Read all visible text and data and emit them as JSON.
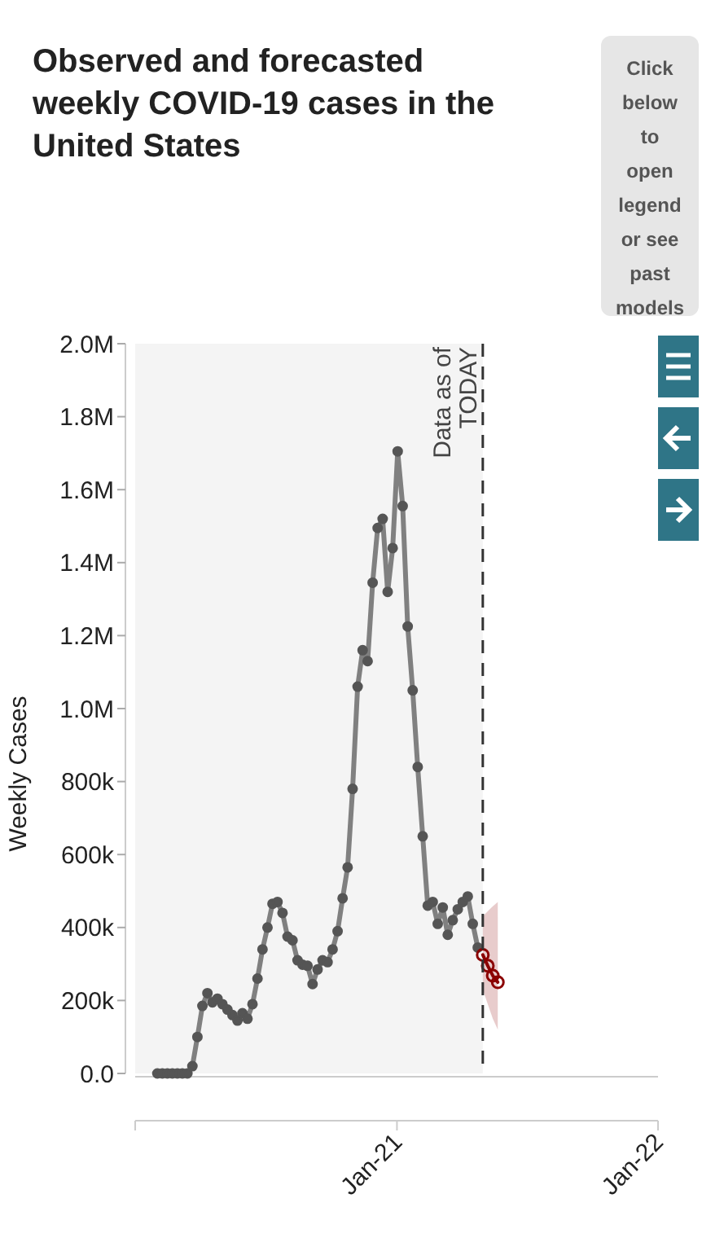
{
  "chart_data": {
    "type": "line",
    "title": "Observed and forecasted weekly COVID-19 cases in the United States",
    "ylabel": "Weekly Cases",
    "annotations": [
      "Click below to open legend or see past models"
    ],
    "xlim": [
      "2020-01-01",
      "2022-01-01"
    ],
    "xticks": [
      {
        "value": "2020-01-01",
        "label": null
      },
      {
        "value": "2021-01-01",
        "label": "Jan-21"
      },
      {
        "value": "2022-01-01",
        "label": "Jan-22"
      }
    ],
    "ylim": [
      0,
      2000000
    ],
    "yticks": [
      {
        "value": 0,
        "label": "0.0"
      },
      {
        "value": 200000,
        "label": "200k"
      },
      {
        "value": 400000,
        "label": "400k"
      },
      {
        "value": 600000,
        "label": "600k"
      },
      {
        "value": 800000,
        "label": "800k"
      },
      {
        "value": 1000000,
        "label": "1.0M"
      },
      {
        "value": 1200000,
        "label": "1.2M"
      },
      {
        "value": 1400000,
        "label": "1.4M"
      },
      {
        "value": 1600000,
        "label": "1.6M"
      },
      {
        "value": 1800000,
        "label": "1.8M"
      },
      {
        "value": 2000000,
        "label": "2.0M"
      }
    ],
    "ref_lines": [
      {
        "axis": "x",
        "value": "2021-05-01",
        "label": "Data as of TODAY",
        "color": "#333333",
        "line_style": "dashed"
      }
    ],
    "bands": [
      {
        "axis": "x",
        "from": "2020-01-01",
        "to": "2021-05-01",
        "color": "#f4f4f4"
      }
    ],
    "grid": false,
    "marker": "circle",
    "line_style": "solid",
    "series": [
      {
        "color": "#808080",
        "x": [
          "2020-02-01",
          "2020-02-08",
          "2020-02-15",
          "2020-02-22",
          "2020-02-29",
          "2020-03-07",
          "2020-03-14",
          "2020-03-21",
          "2020-03-28",
          "2020-04-04",
          "2020-04-11",
          "2020-04-18",
          "2020-04-25",
          "2020-05-02",
          "2020-05-09",
          "2020-05-16",
          "2020-05-23",
          "2020-05-30",
          "2020-06-06",
          "2020-06-13",
          "2020-06-20",
          "2020-06-27",
          "2020-07-04",
          "2020-07-11",
          "2020-07-18",
          "2020-07-25",
          "2020-08-01",
          "2020-08-08",
          "2020-08-15",
          "2020-08-22",
          "2020-08-29",
          "2020-09-05",
          "2020-09-12",
          "2020-09-19",
          "2020-09-26",
          "2020-10-03",
          "2020-10-10",
          "2020-10-17",
          "2020-10-24",
          "2020-10-31",
          "2020-11-07",
          "2020-11-14",
          "2020-11-21",
          "2020-11-28",
          "2020-12-05",
          "2020-12-12",
          "2020-12-19",
          "2020-12-26",
          "2021-01-02",
          "2021-01-09",
          "2021-01-16",
          "2021-01-23",
          "2021-01-30",
          "2021-02-06",
          "2021-02-13",
          "2021-02-20",
          "2021-02-27",
          "2021-03-06",
          "2021-03-13",
          "2021-03-20",
          "2021-03-27",
          "2021-04-03",
          "2021-04-10",
          "2021-04-17",
          "2021-04-24"
        ],
        "values": [
          0,
          0,
          0,
          0,
          0,
          0,
          0,
          20000,
          100000,
          185000,
          220000,
          195000,
          205000,
          190000,
          175000,
          160000,
          145000,
          165000,
          150000,
          190000,
          260000,
          340000,
          400000,
          465000,
          470000,
          440000,
          375000,
          365000,
          310000,
          298000,
          295000,
          245000,
          285000,
          310000,
          305000,
          340000,
          390000,
          480000,
          565000,
          780000,
          1060000,
          1160000,
          1130000,
          1345000,
          1495000,
          1520000,
          1320000,
          1440000,
          1705000,
          1555000,
          1225000,
          1050000,
          840000,
          650000,
          460000,
          470000,
          410000,
          455000,
          380000,
          420000,
          450000,
          470000,
          485000,
          410000,
          345000
        ]
      },
      {
        "color": "#8b0000",
        "x": [
          "2021-05-01",
          "2021-05-08",
          "2021-05-15",
          "2021-05-22"
        ],
        "values": [
          325000,
          295000,
          268000,
          250000
        ],
        "lower": [
          230000,
          190000,
          150000,
          120000
        ],
        "upper": [
          430000,
          445000,
          458000,
          470000
        ]
      }
    ]
  }
}
